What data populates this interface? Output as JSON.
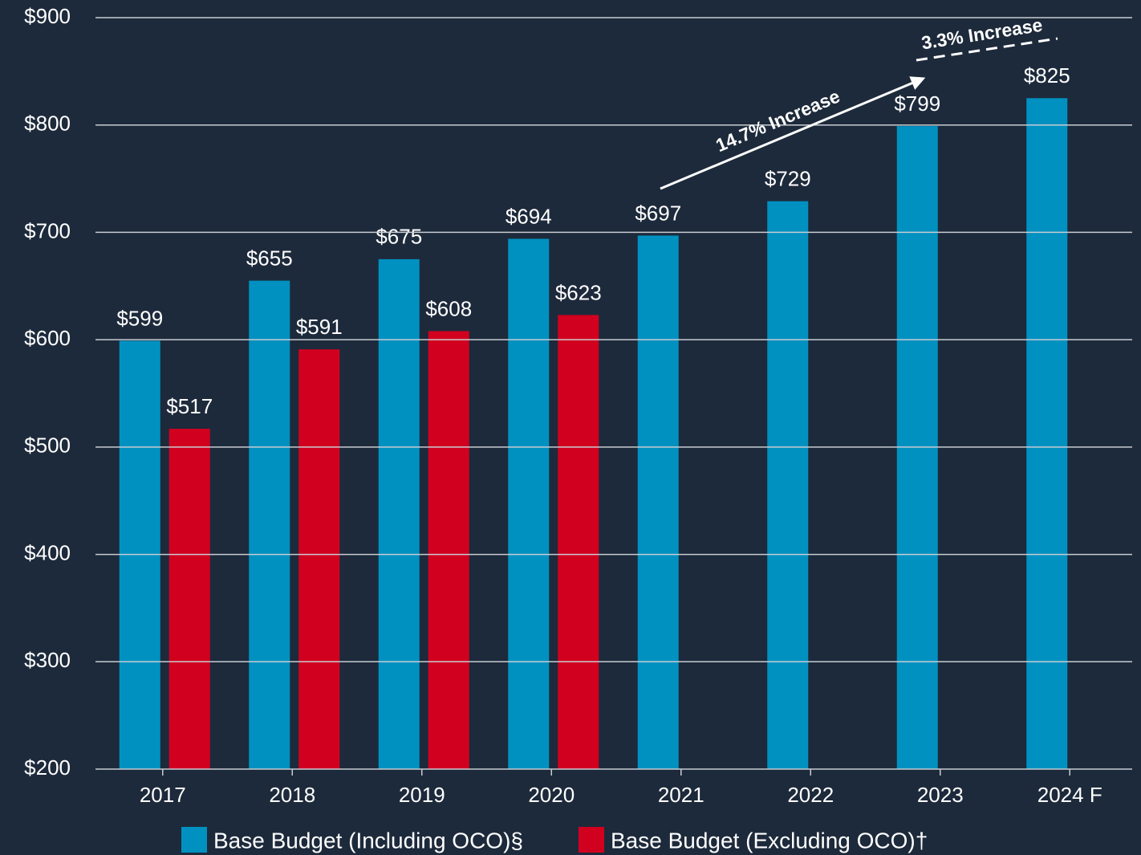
{
  "chart_data": {
    "type": "bar",
    "categories": [
      "2017",
      "2018",
      "2019",
      "2020",
      "2021",
      "2022",
      "2023",
      "2024 F"
    ],
    "series": [
      {
        "name": "Base Budget (Including OCO)§",
        "color": "#0091c1",
        "values": [
          599,
          655,
          675,
          694,
          697,
          729,
          799,
          825
        ],
        "value_labels": [
          "$599",
          "$655",
          "$675",
          "$694",
          "$697",
          "$729",
          "$799",
          "$825"
        ]
      },
      {
        "name": "Base Budget (Excluding OCO)†",
        "color": "#d2001f",
        "values": [
          517,
          591,
          608,
          623,
          null,
          null,
          null,
          null
        ],
        "value_labels": [
          "$517",
          "$591",
          "$608",
          "$623",
          null,
          null,
          null,
          null
        ]
      }
    ],
    "ylim": [
      200,
      900
    ],
    "yticks": [
      {
        "value": 200,
        "label": "$200"
      },
      {
        "value": 300,
        "label": "$300"
      },
      {
        "value": 400,
        "label": "$400"
      },
      {
        "value": 500,
        "label": "$500"
      },
      {
        "value": 600,
        "label": "$600"
      },
      {
        "value": 700,
        "label": "$700"
      },
      {
        "value": 800,
        "label": "$800"
      },
      {
        "value": 900,
        "label": "$900"
      }
    ],
    "grid": true,
    "legend": "bottom",
    "annotations": [
      "14.7% Increase",
      "3.3% Increase"
    ]
  }
}
